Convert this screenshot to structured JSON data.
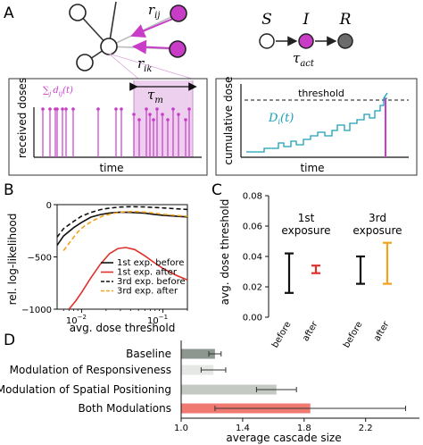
{
  "panels": {
    "a": "A",
    "b": "B",
    "c": "C",
    "d": "D"
  },
  "colors": {
    "magenta": "#c83cc8",
    "cyan": "#1aa0b8",
    "gray_node": "#6b6b6b",
    "red": "#e0302a",
    "orange": "#f5a11a",
    "bar_baseline": "#8e9690",
    "bar_resp": "#e6e8e6",
    "bar_spatial": "#c4c9c4",
    "bar_both": "#f07a72"
  },
  "network": {
    "r_ij": "r",
    "r_ij_sub": "ij",
    "r_ik": "r",
    "r_ik_sub": "ik"
  },
  "sir": {
    "s": "S",
    "i": "I",
    "r": "R",
    "tau": "τ",
    "tau_sub": "act"
  },
  "received": {
    "ylabel": "received doses",
    "xlabel": "time",
    "sum_label": "∑",
    "sum_sub": "j",
    "sum_term": "d",
    "sum_term_sub": "ij",
    "sum_arg": "(t)",
    "tau": "τ",
    "tau_sub": "m"
  },
  "cumulative": {
    "ylabel": "cumulative dose",
    "xlabel": "time",
    "threshold": "threshold",
    "d_label": "D",
    "d_sub": "i",
    "d_arg": "(t)"
  },
  "chart_b": {
    "type": "line",
    "ylabel": "rel. log-likelihood",
    "xlabel": "avg. dose threshold",
    "xscale": "log",
    "xlim": [
      0.005,
      0.2
    ],
    "ylim": [
      -1000,
      0
    ],
    "yticks": [
      "0",
      "−500",
      "−1000"
    ],
    "xticks": [
      "10",
      "10"
    ],
    "xtick_exp": [
      "−2",
      "−1"
    ],
    "legend_position": "lower-right",
    "series": [
      {
        "name": "1st exp. before",
        "color": "#111111",
        "dash": "solid",
        "x": [
          0.005,
          0.006,
          0.008,
          0.01,
          0.013,
          0.017,
          0.022,
          0.03,
          0.04,
          0.06,
          0.08,
          0.1,
          0.15,
          0.2
        ],
        "y": [
          -390,
          -300,
          -220,
          -170,
          -120,
          -95,
          -80,
          -72,
          -74,
          -82,
          -95,
          -102,
          -112,
          -118
        ]
      },
      {
        "name": "1st exp. after",
        "color": "#e0302a",
        "dash": "solid",
        "x": [
          0.007,
          0.0085,
          0.01,
          0.013,
          0.017,
          0.022,
          0.028,
          0.035,
          0.045,
          0.06,
          0.08,
          0.1,
          0.15,
          0.2
        ],
        "y": [
          -1000,
          -920,
          -840,
          -700,
          -570,
          -470,
          -420,
          -410,
          -430,
          -490,
          -560,
          -610,
          -680,
          -720
        ]
      },
      {
        "name": "3rd exp. before",
        "color": "#111111",
        "dash": "dashed",
        "x": [
          0.005,
          0.006,
          0.008,
          0.01,
          0.013,
          0.017,
          0.022,
          0.03,
          0.04,
          0.06,
          0.08,
          0.1,
          0.15,
          0.2
        ],
        "y": [
          -310,
          -230,
          -160,
          -110,
          -75,
          -48,
          -33,
          -23,
          -20,
          -22,
          -27,
          -32,
          -40,
          -46
        ]
      },
      {
        "name": "3rd exp. after",
        "color": "#f5a11a",
        "dash": "dashed",
        "x": [
          0.006,
          0.0075,
          0.009,
          0.011,
          0.014,
          0.018,
          0.024,
          0.032,
          0.042,
          0.06,
          0.08,
          0.1,
          0.15,
          0.2
        ],
        "y": [
          -440,
          -340,
          -260,
          -200,
          -150,
          -110,
          -85,
          -70,
          -66,
          -72,
          -82,
          -92,
          -104,
          -112
        ]
      }
    ]
  },
  "chart_c": {
    "type": "errorbar",
    "ylabel": "avg. dose threshold",
    "ylim": [
      0.0,
      0.08
    ],
    "yticks": [
      "0.00",
      "0.02",
      "0.04",
      "0.06",
      "0.08"
    ],
    "groups": [
      {
        "title1": "1st",
        "title2": "exposure",
        "bars": [
          {
            "label": "before",
            "color": "#111111",
            "low": 0.016,
            "high": 0.042
          },
          {
            "label": "after",
            "color": "#e0302a",
            "low": 0.029,
            "high": 0.034
          }
        ]
      },
      {
        "title1": "3rd",
        "title2": "exposure",
        "bars": [
          {
            "label": "before",
            "color": "#111111",
            "low": 0.022,
            "high": 0.04
          },
          {
            "label": "after",
            "color": "#f5a11a",
            "low": 0.022,
            "high": 0.049
          }
        ]
      }
    ]
  },
  "chart_d": {
    "type": "bar",
    "orientation": "horizontal",
    "xlabel": "average cascade size",
    "xlim": [
      1.0,
      2.55
    ],
    "xticks": [
      "1.0",
      "1.4",
      "1.8",
      "2.2"
    ],
    "xtick_values": [
      1.0,
      1.4,
      1.8,
      2.2
    ],
    "categories": [
      "Baseline",
      "Modulation of Responsiveness",
      "Modulation of Spatial Positioning",
      "Both Modulations"
    ],
    "values": [
      1.22,
      1.21,
      1.62,
      1.84
    ],
    "errors": [
      0.04,
      0.08,
      0.13,
      0.62
    ],
    "colors": [
      "#8e9690",
      "#e6e8e6",
      "#c4c9c4",
      "#f07a72"
    ]
  }
}
